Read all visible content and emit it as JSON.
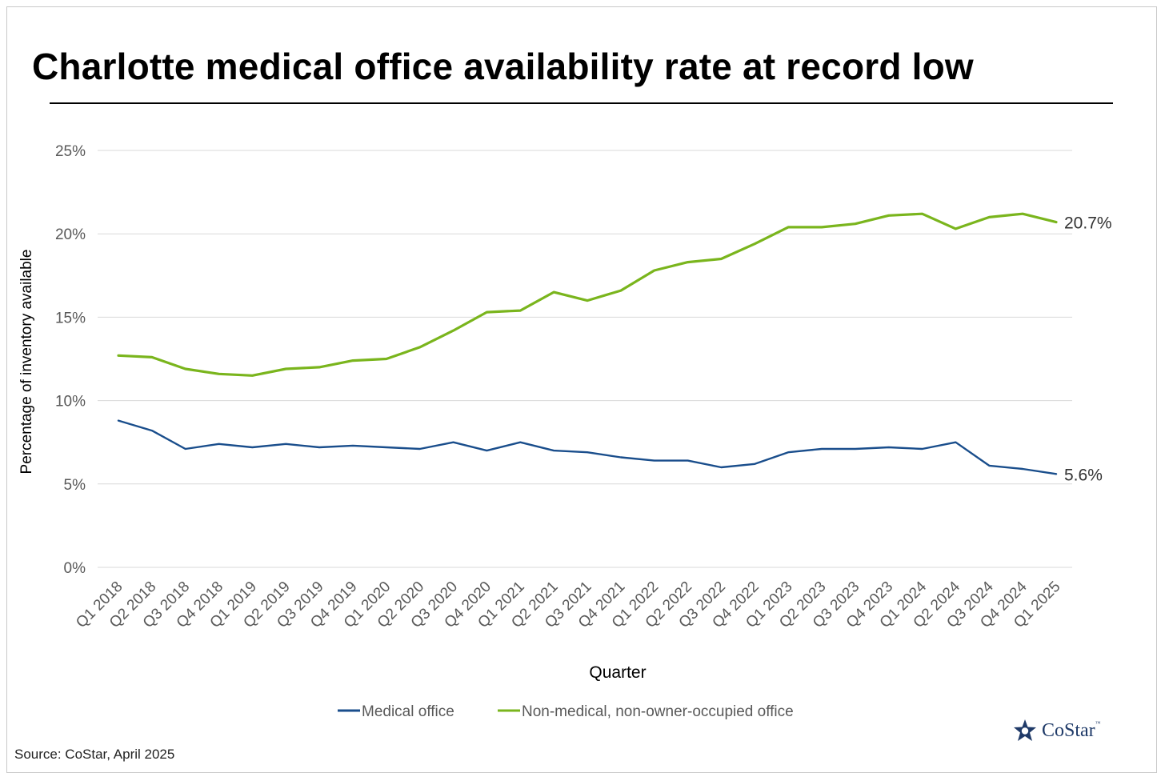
{
  "title": "Charlotte medical office availability rate at record low",
  "source": "Source: CoStar, April 2025",
  "logo": {
    "name": "CoStar",
    "tm": "™"
  },
  "colors": {
    "medical": "#1a4e8c",
    "nonmedical": "#7ab51d",
    "grid": "#d9d9d9",
    "axis_text": "#595959"
  },
  "chart_data": {
    "type": "line",
    "title": "Charlotte medical office availability rate at record low",
    "xlabel": "Quarter",
    "ylabel": "Percentage of inventory available",
    "ylim": [
      0,
      25
    ],
    "yticks": [
      0,
      5,
      10,
      15,
      20,
      25
    ],
    "ytick_labels": [
      "0%",
      "5%",
      "10%",
      "15%",
      "20%",
      "25%"
    ],
    "categories": [
      "Q1 2018",
      "Q2 2018",
      "Q3 2018",
      "Q4 2018",
      "Q1 2019",
      "Q2 2019",
      "Q3 2019",
      "Q4 2019",
      "Q1 2020",
      "Q2 2020",
      "Q3 2020",
      "Q4 2020",
      "Q1 2021",
      "Q2 2021",
      "Q3 2021",
      "Q4 2021",
      "Q1 2022",
      "Q2 2022",
      "Q3 2022",
      "Q4 2022",
      "Q1 2023",
      "Q2 2023",
      "Q3 2023",
      "Q4 2023",
      "Q1 2024",
      "Q2 2024",
      "Q3 2024",
      "Q4 2024",
      "Q1 2025"
    ],
    "series": [
      {
        "name": "Medical office",
        "color": "#1a4e8c",
        "end_label": "5.6%",
        "values": [
          8.8,
          8.2,
          7.1,
          7.4,
          7.2,
          7.4,
          7.2,
          7.3,
          7.2,
          7.1,
          7.5,
          7.0,
          7.5,
          7.0,
          6.9,
          6.6,
          6.4,
          6.4,
          6.0,
          6.2,
          6.9,
          7.1,
          7.1,
          7.2,
          7.1,
          7.5,
          6.1,
          5.9,
          5.6
        ]
      },
      {
        "name": "Non-medical, non-owner-occupied office",
        "color": "#7ab51d",
        "end_label": "20.7%",
        "values": [
          12.7,
          12.6,
          11.9,
          11.6,
          11.5,
          11.9,
          12.0,
          12.4,
          12.5,
          13.2,
          14.2,
          15.3,
          15.4,
          16.5,
          16.0,
          16.6,
          17.8,
          18.3,
          18.5,
          19.4,
          20.4,
          20.4,
          20.6,
          21.1,
          21.2,
          20.3,
          21.0,
          21.2,
          20.7
        ]
      }
    ],
    "legend_position": "bottom-center",
    "grid": true
  }
}
